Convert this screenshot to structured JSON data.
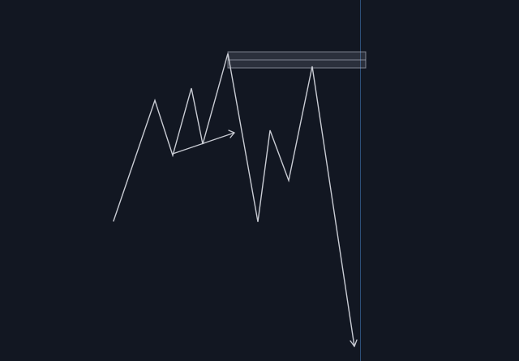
{
  "canvas": {
    "background": "#121722"
  },
  "colors": {
    "line": "#c9ccd4",
    "zone_fill": "rgba(200,206,218,0.14)",
    "zone_border": "rgba(200,206,218,0.55)",
    "vertical_line": "#2d4f78"
  },
  "drawing": {
    "tool": "zigzag-price-path",
    "zone_type": "supply-zone-rectangle",
    "markers": [
      "small-arrow",
      "down-arrow"
    ],
    "cursor_line": "vertical-crosshair-line"
  }
}
